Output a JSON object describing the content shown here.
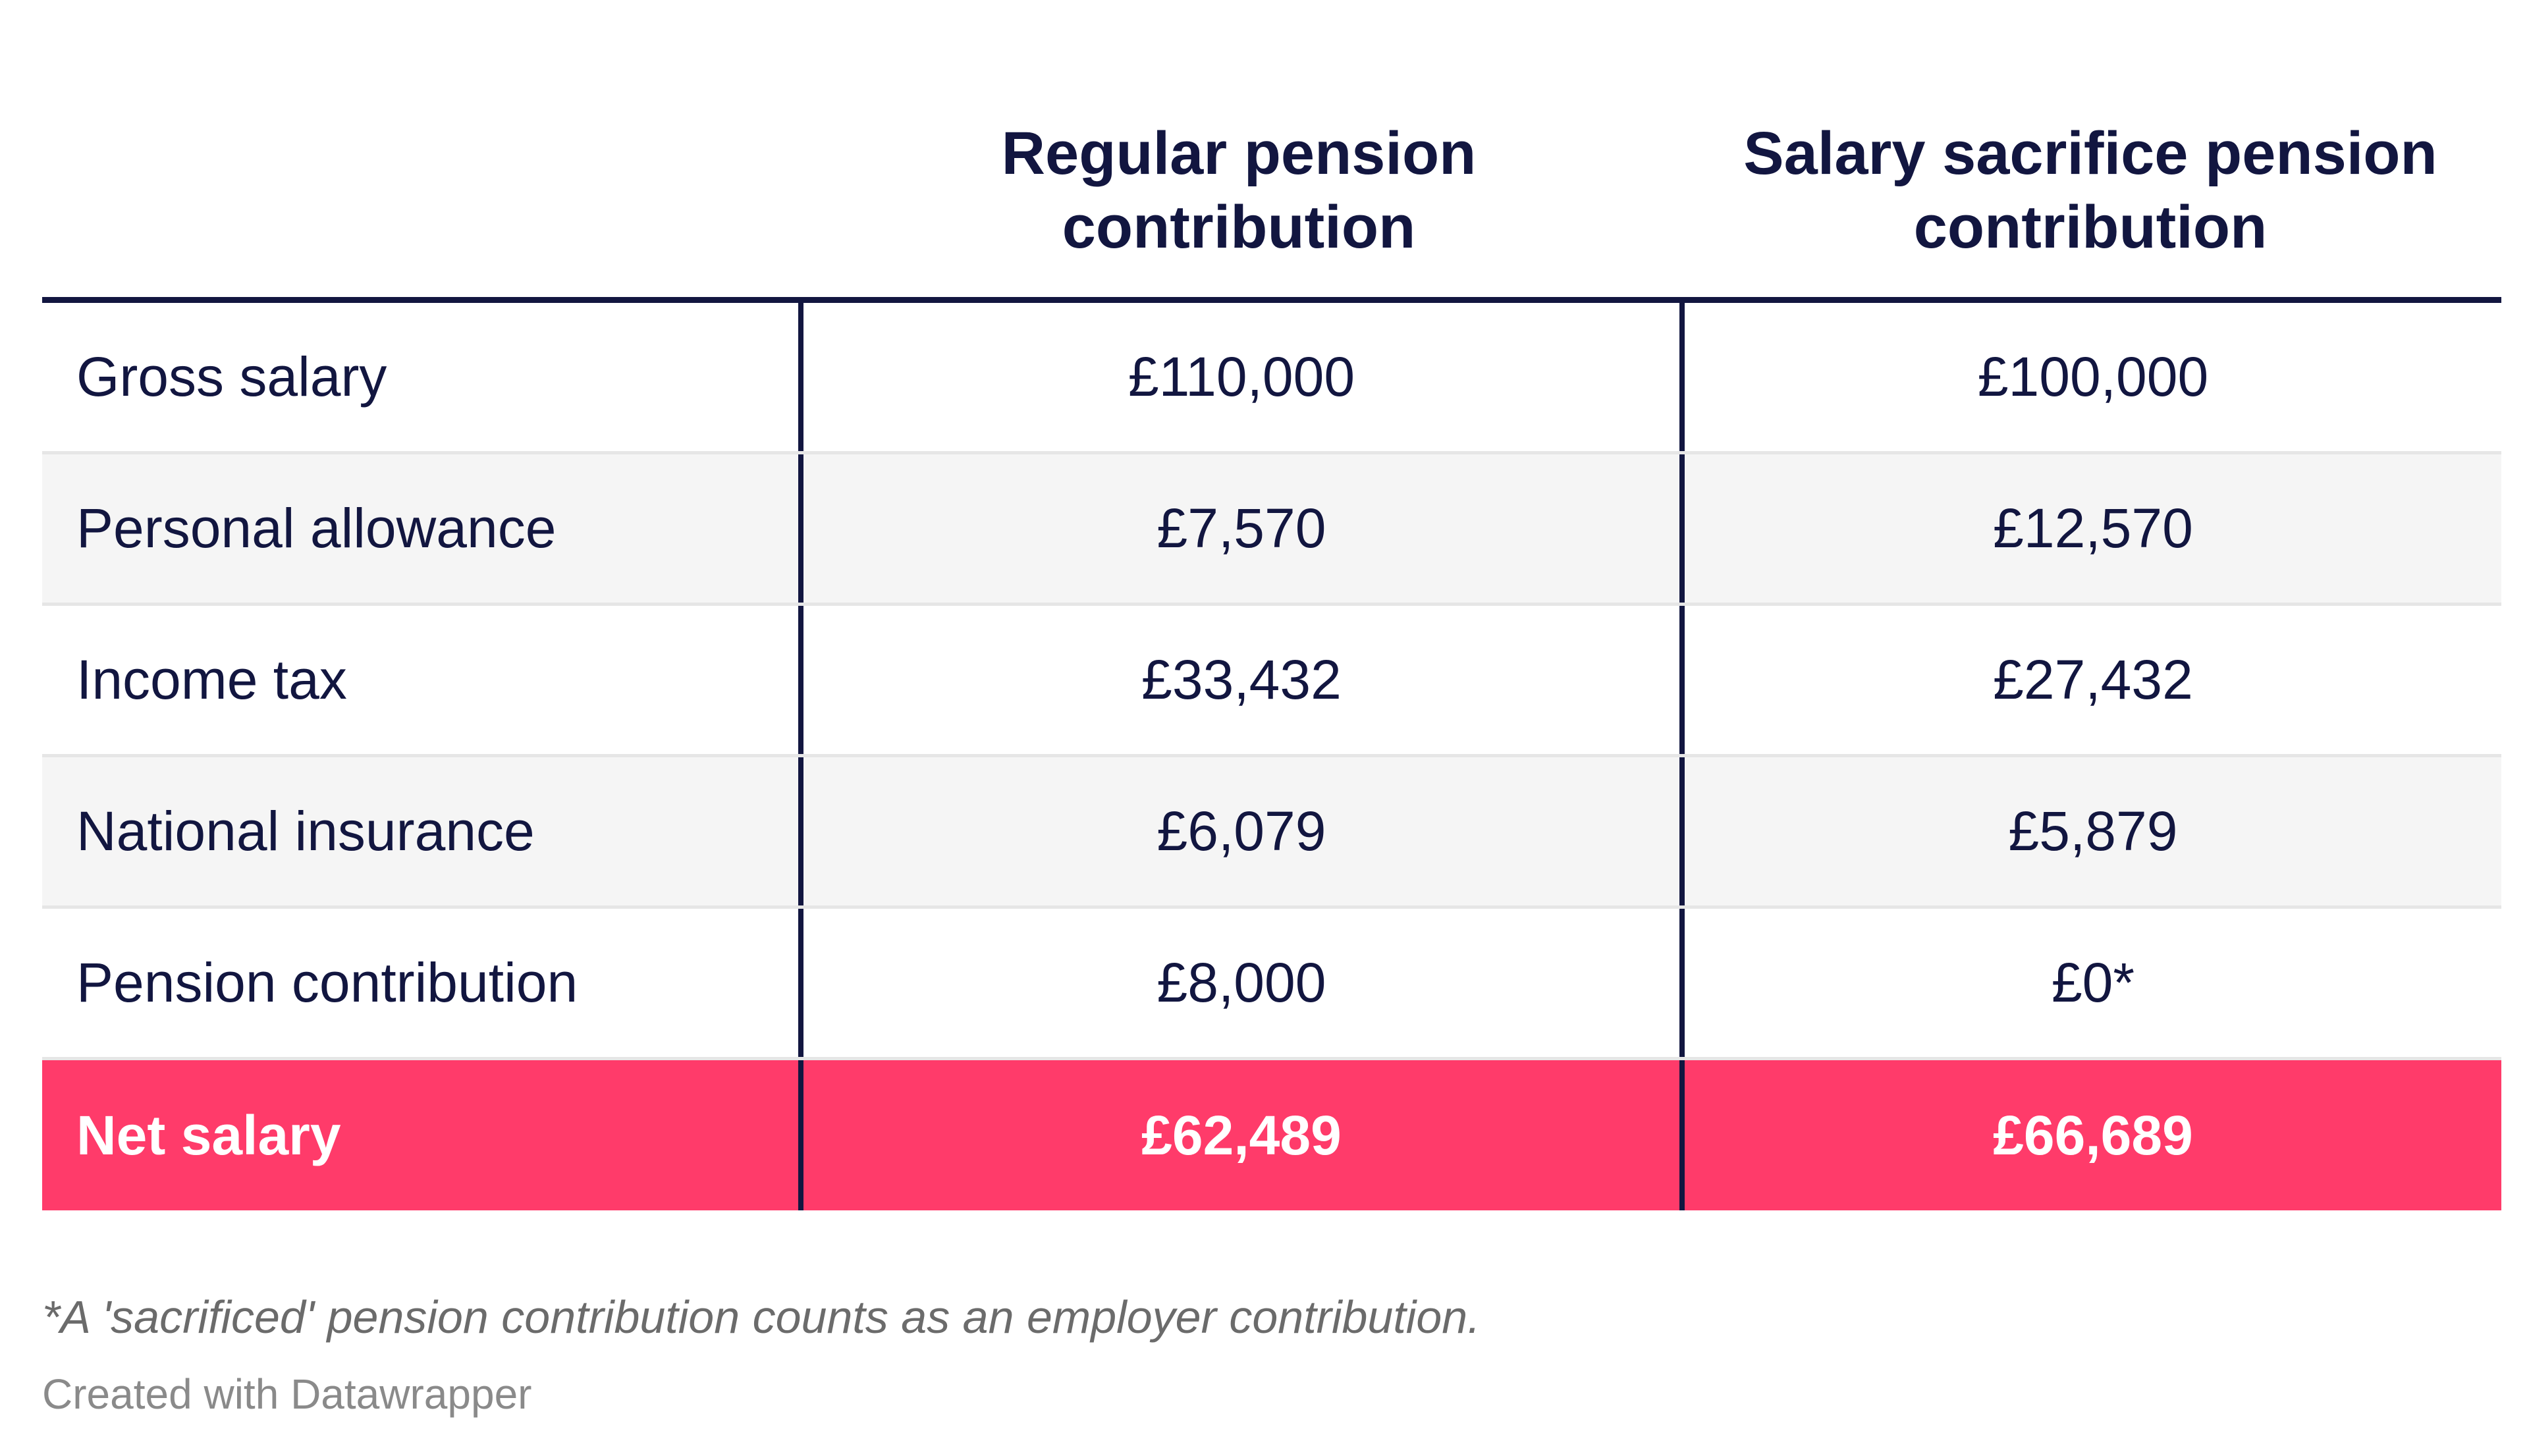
{
  "chart_data": {
    "type": "table",
    "columns": [
      "",
      "Regular pension\ncontribution",
      "Salary sacrifice pension\ncontribution"
    ],
    "rows": [
      {
        "label": "Gross salary",
        "regular": "£110,000",
        "sacrifice": "£100,000"
      },
      {
        "label": "Personal allowance",
        "regular": "£7,570",
        "sacrifice": "£12,570"
      },
      {
        "label": "Income tax",
        "regular": "£33,432",
        "sacrifice": "£27,432"
      },
      {
        "label": "National insurance",
        "regular": "£6,079",
        "sacrifice": "£5,879"
      },
      {
        "label": "Pension contribution",
        "regular": "£8,000",
        "sacrifice": "£0*"
      },
      {
        "label": "Net salary",
        "regular": "£62,489",
        "sacrifice": "£66,689"
      }
    ],
    "highlight_row": "Net salary",
    "highlight_color": "#ff3b6a",
    "text_color": "#121640",
    "footnote": "*A 'sacrificed' pension contribution counts as an employer contribution.",
    "credit": "Created with Datawrapper"
  }
}
